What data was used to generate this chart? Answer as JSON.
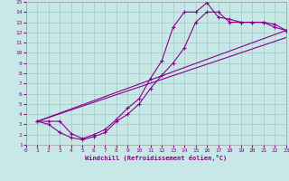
{
  "xlabel": "Windchill (Refroidissement éolien,°C)",
  "background_color": "#c8e8e8",
  "grid_color": "#a8cccc",
  "line_color": "#880088",
  "xlim": [
    0,
    23
  ],
  "ylim": [
    1,
    15
  ],
  "xticks": [
    0,
    1,
    2,
    3,
    4,
    5,
    6,
    7,
    8,
    9,
    10,
    11,
    12,
    13,
    14,
    15,
    16,
    17,
    18,
    19,
    20,
    21,
    22,
    23
  ],
  "yticks": [
    1,
    2,
    3,
    4,
    5,
    6,
    7,
    8,
    9,
    10,
    11,
    12,
    13,
    14,
    15
  ],
  "curve1_x": [
    1,
    2,
    3,
    4,
    5,
    6,
    7,
    8,
    9,
    10,
    11,
    12,
    13,
    14,
    15,
    16,
    17,
    18,
    19,
    20,
    21,
    22,
    23
  ],
  "curve1_y": [
    3.3,
    3.3,
    3.3,
    2.1,
    1.6,
    2.0,
    2.5,
    3.5,
    4.6,
    5.5,
    7.5,
    9.2,
    12.5,
    14.0,
    14.0,
    14.9,
    13.5,
    13.3,
    13.0,
    13.0,
    13.0,
    12.8,
    12.2
  ],
  "curve2_x": [
    1,
    2,
    3,
    4,
    5,
    6,
    7,
    8,
    9,
    10,
    11,
    12,
    13,
    14,
    15,
    16,
    17,
    18,
    19,
    20,
    21,
    22,
    23
  ],
  "curve2_y": [
    3.3,
    3.0,
    2.2,
    1.7,
    1.5,
    1.8,
    2.2,
    3.3,
    4.0,
    5.0,
    6.5,
    7.8,
    9.0,
    10.5,
    13.0,
    14.0,
    14.0,
    13.0,
    13.0,
    13.0,
    13.0,
    12.5,
    12.2
  ],
  "line1_x": [
    1,
    23
  ],
  "line1_y": [
    3.3,
    12.2
  ],
  "line2_x": [
    1,
    23
  ],
  "line2_y": [
    3.3,
    11.5
  ]
}
